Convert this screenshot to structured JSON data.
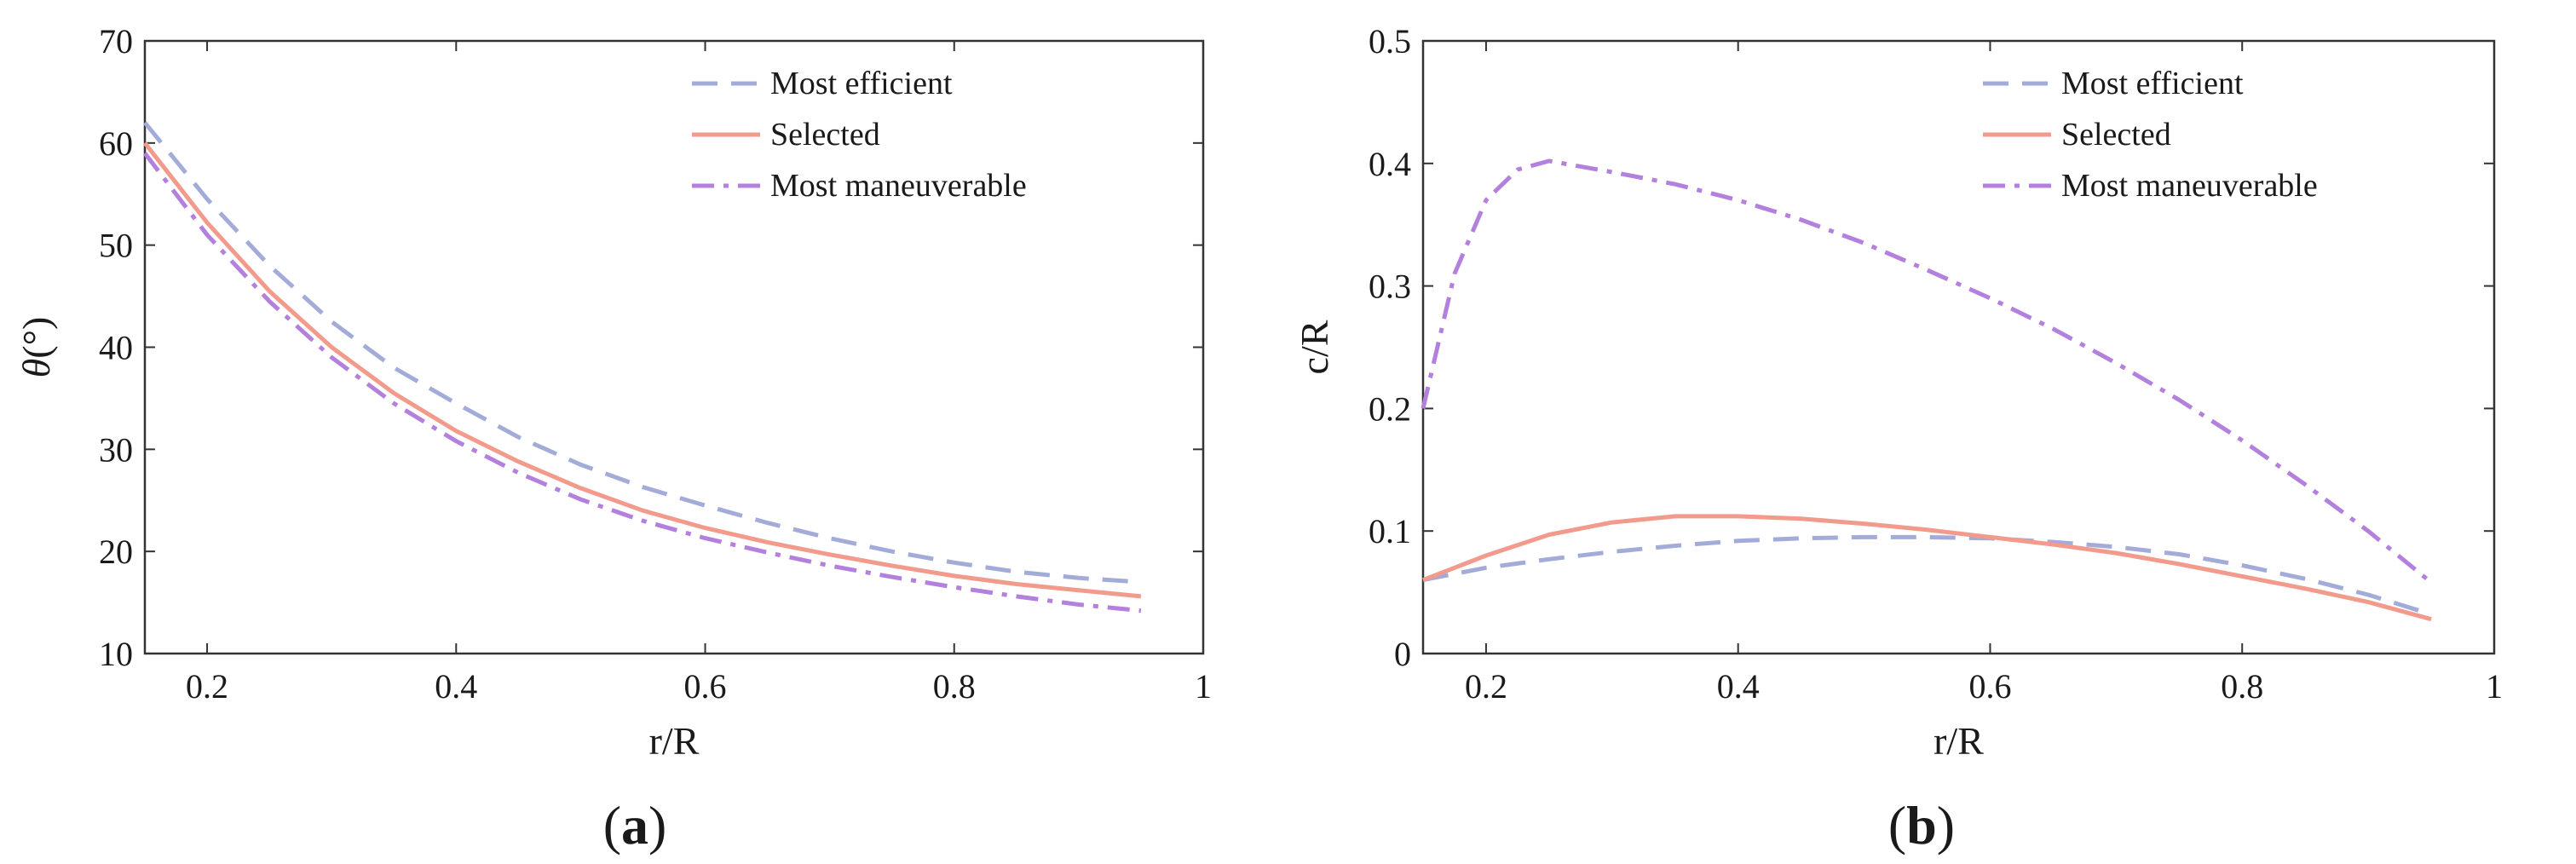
{
  "figure": {
    "sub_a": "(a)",
    "sub_a_letter": "a",
    "sub_b": "(b)",
    "sub_b_letter": "b"
  },
  "colors": {
    "efficient": "#a3acd8",
    "selected": "#f29a8b",
    "maneuverable": "#b380de",
    "axis": "#333333"
  },
  "chart_data": [
    {
      "type": "line",
      "title": "",
      "xlabel": "r/R",
      "ylabel": "θ(°)",
      "ylabel_symbol": "θ",
      "ylabel_unit": "(°)",
      "xlim": [
        0.15,
        1.0
      ],
      "ylim": [
        10,
        70
      ],
      "xticks": [
        0.2,
        0.4,
        0.6,
        0.8,
        1
      ],
      "xtick_labels": [
        "0.2",
        "0.4",
        "0.6",
        "0.8",
        "1"
      ],
      "yticks": [
        10,
        20,
        30,
        40,
        50,
        60,
        70
      ],
      "ytick_labels": [
        "10",
        "20",
        "30",
        "40",
        "50",
        "60",
        "70"
      ],
      "legend_position": "top-right",
      "x": [
        0.15,
        0.2,
        0.25,
        0.3,
        0.35,
        0.4,
        0.45,
        0.5,
        0.55,
        0.6,
        0.65,
        0.7,
        0.75,
        0.8,
        0.85,
        0.9,
        0.95
      ],
      "series": [
        {
          "name": "Most efficient",
          "style": "dashed",
          "values": [
            62,
            54.5,
            48,
            42.5,
            38,
            34.5,
            31.2,
            28.5,
            26.3,
            24.5,
            22.8,
            21.3,
            20.0,
            18.9,
            18.0,
            17.4,
            17.0
          ]
        },
        {
          "name": "Selected",
          "style": "solid",
          "values": [
            60,
            52.2,
            45.5,
            40,
            35.5,
            31.8,
            28.8,
            26.2,
            24,
            22.3,
            20.9,
            19.7,
            18.6,
            17.6,
            16.8,
            16.2,
            15.6
          ]
        },
        {
          "name": "Most maneuverable",
          "style": "dashdot",
          "values": [
            59,
            51,
            44.5,
            39,
            34.5,
            30.8,
            27.7,
            25.1,
            23,
            21.3,
            19.9,
            18.6,
            17.5,
            16.5,
            15.6,
            14.8,
            14.2
          ]
        }
      ]
    },
    {
      "type": "line",
      "title": "",
      "xlabel": "r/R",
      "ylabel": "c/R",
      "xlim": [
        0.15,
        1.0
      ],
      "ylim": [
        0,
        0.5
      ],
      "xticks": [
        0.2,
        0.4,
        0.6,
        0.8,
        1
      ],
      "xtick_labels": [
        "0.2",
        "0.4",
        "0.6",
        "0.8",
        "1"
      ],
      "yticks": [
        0,
        0.1,
        0.2,
        0.3,
        0.4,
        0.5
      ],
      "ytick_labels": [
        "0",
        "0.1",
        "0.2",
        "0.3",
        "0.4",
        "0.5"
      ],
      "legend_position": "top-right",
      "series": [
        {
          "name": "Most efficient",
          "style": "dashed",
          "x": [
            0.15,
            0.2,
            0.25,
            0.3,
            0.35,
            0.4,
            0.45,
            0.5,
            0.55,
            0.6,
            0.65,
            0.7,
            0.75,
            0.8,
            0.85,
            0.9,
            0.95
          ],
          "values": [
            0.06,
            0.07,
            0.077,
            0.083,
            0.088,
            0.092,
            0.094,
            0.095,
            0.095,
            0.094,
            0.091,
            0.087,
            0.081,
            0.072,
            0.061,
            0.048,
            0.032
          ]
        },
        {
          "name": "Selected",
          "style": "solid",
          "x": [
            0.15,
            0.2,
            0.25,
            0.3,
            0.35,
            0.4,
            0.45,
            0.5,
            0.55,
            0.6,
            0.65,
            0.7,
            0.75,
            0.8,
            0.85,
            0.9,
            0.95
          ],
          "values": [
            0.06,
            0.08,
            0.097,
            0.107,
            0.112,
            0.112,
            0.11,
            0.106,
            0.101,
            0.095,
            0.089,
            0.082,
            0.073,
            0.063,
            0.053,
            0.042,
            0.028
          ]
        },
        {
          "name": "Most maneuverable",
          "style": "dashdot",
          "x": [
            0.15,
            0.175,
            0.2,
            0.225,
            0.25,
            0.3,
            0.35,
            0.4,
            0.45,
            0.5,
            0.55,
            0.6,
            0.65,
            0.7,
            0.75,
            0.8,
            0.85,
            0.9,
            0.95
          ],
          "values": [
            0.2,
            0.31,
            0.37,
            0.395,
            0.402,
            0.393,
            0.383,
            0.37,
            0.354,
            0.335,
            0.313,
            0.29,
            0.265,
            0.237,
            0.207,
            0.174,
            0.138,
            0.1,
            0.058
          ]
        }
      ]
    }
  ]
}
